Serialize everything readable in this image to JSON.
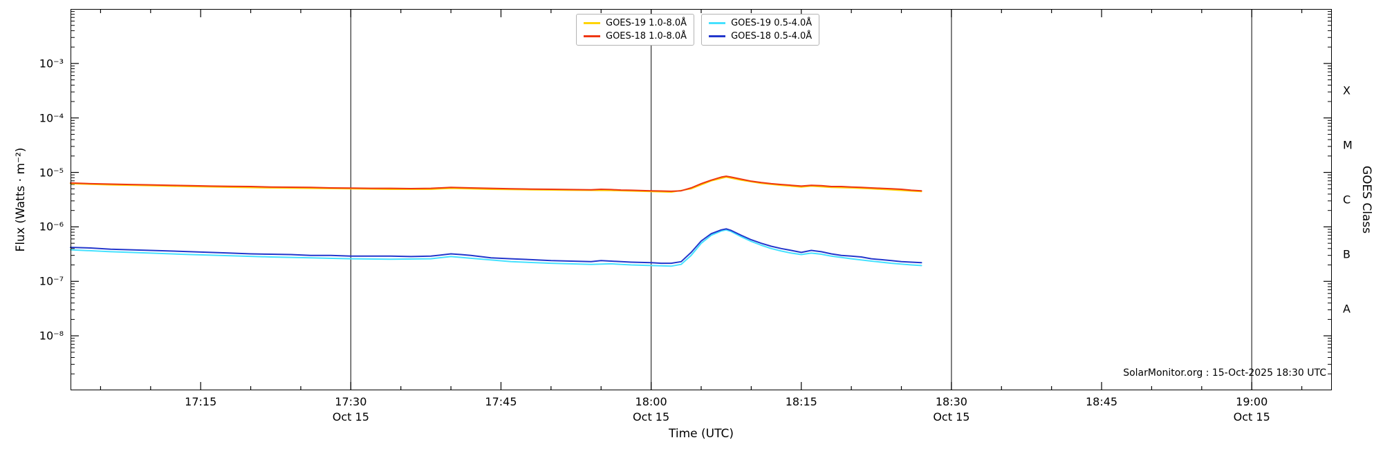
{
  "chart_data": {
    "type": "line",
    "title": "",
    "xlabel": "Time (UTC)",
    "ylabel": "Flux (Watts · m⁻²)",
    "ylabel_right": "GOES Class",
    "watermark": "SolarMonitor.org : 15-Oct-2025 18:30 UTC",
    "x_ref": "17:00 UTC, minutes offset",
    "x_range_minutes": [
      2,
      128
    ],
    "y_log_range": [
      -9,
      -2
    ],
    "grid": "vertical lines at half-hour marks only",
    "legend_position": "top center, two boxes",
    "y_ticks": [
      {
        "exp": -3,
        "label": "10⁻³"
      },
      {
        "exp": -4,
        "label": "10⁻⁴"
      },
      {
        "exp": -5,
        "label": "10⁻⁵"
      },
      {
        "exp": -6,
        "label": "10⁻⁶"
      },
      {
        "exp": -7,
        "label": "10⁻⁷"
      },
      {
        "exp": -8,
        "label": "10⁻⁸"
      }
    ],
    "x_ticks": [
      {
        "minute": 15,
        "label": "17:15",
        "sub": ""
      },
      {
        "minute": 30,
        "label": "17:30",
        "sub": "Oct 15"
      },
      {
        "minute": 45,
        "label": "17:45",
        "sub": ""
      },
      {
        "minute": 60,
        "label": "18:00",
        "sub": "Oct 15"
      },
      {
        "minute": 75,
        "label": "18:15",
        "sub": ""
      },
      {
        "minute": 90,
        "label": "18:30",
        "sub": "Oct 15"
      },
      {
        "minute": 105,
        "label": "18:45",
        "sub": ""
      },
      {
        "minute": 120,
        "label": "19:00",
        "sub": "Oct 15"
      }
    ],
    "gridline_minutes": [
      30,
      60,
      90,
      120
    ],
    "minor_tick_step_minutes": 5,
    "goes_classes": [
      {
        "label": "X",
        "log": -3.5
      },
      {
        "label": "M",
        "log": -4.5
      },
      {
        "label": "C",
        "log": -5.5
      },
      {
        "label": "B",
        "log": -6.5
      },
      {
        "label": "A",
        "log": -7.5
      }
    ],
    "series": [
      {
        "name": "GOES-19 1.0-8.0Å",
        "color": "#ffd400",
        "points": [
          [
            2,
            6.2e-06
          ],
          [
            6,
            5.9e-06
          ],
          [
            10,
            5.7e-06
          ],
          [
            14,
            5.5e-06
          ],
          [
            18,
            5.35e-06
          ],
          [
            22,
            5.2e-06
          ],
          [
            26,
            5.1e-06
          ],
          [
            30,
            5e-06
          ],
          [
            34,
            4.9e-06
          ],
          [
            38,
            4.9e-06
          ],
          [
            40,
            5.1e-06
          ],
          [
            44,
            4.9e-06
          ],
          [
            48,
            4.8e-06
          ],
          [
            52,
            4.7e-06
          ],
          [
            56,
            4.65e-06
          ],
          [
            60,
            4.45e-06
          ],
          [
            62,
            4.35e-06
          ],
          [
            64,
            5e-06
          ],
          [
            66,
            7e-06
          ],
          [
            67.5,
            8.2e-06
          ],
          [
            69,
            7.2e-06
          ],
          [
            71,
            6.3e-06
          ],
          [
            73,
            5.8e-06
          ],
          [
            75,
            5.4e-06
          ],
          [
            76,
            5.6e-06
          ],
          [
            78,
            5.3e-06
          ],
          [
            80,
            5.2e-06
          ],
          [
            82,
            5e-06
          ],
          [
            84,
            4.8e-06
          ],
          [
            86,
            4.55e-06
          ],
          [
            87,
            4.45e-06
          ]
        ]
      },
      {
        "name": "GOES-18 1.0-8.0Å",
        "color": "#ee3611",
        "points": [
          [
            2,
            6.4e-06
          ],
          [
            4,
            6.2e-06
          ],
          [
            6,
            6.1e-06
          ],
          [
            8,
            6e-06
          ],
          [
            10,
            5.9e-06
          ],
          [
            12,
            5.8e-06
          ],
          [
            14,
            5.7e-06
          ],
          [
            16,
            5.6e-06
          ],
          [
            18,
            5.55e-06
          ],
          [
            20,
            5.5e-06
          ],
          [
            22,
            5.4e-06
          ],
          [
            24,
            5.35e-06
          ],
          [
            26,
            5.3e-06
          ],
          [
            28,
            5.2e-06
          ],
          [
            30,
            5.15e-06
          ],
          [
            32,
            5.1e-06
          ],
          [
            34,
            5.1e-06
          ],
          [
            36,
            5.05e-06
          ],
          [
            38,
            5.1e-06
          ],
          [
            40,
            5.3e-06
          ],
          [
            41,
            5.25e-06
          ],
          [
            42,
            5.2e-06
          ],
          [
            44,
            5.1e-06
          ],
          [
            46,
            5e-06
          ],
          [
            48,
            4.95e-06
          ],
          [
            50,
            4.9e-06
          ],
          [
            52,
            4.85e-06
          ],
          [
            54,
            4.8e-06
          ],
          [
            55,
            4.9e-06
          ],
          [
            56,
            4.85e-06
          ],
          [
            57,
            4.75e-06
          ],
          [
            58,
            4.7e-06
          ],
          [
            60,
            4.6e-06
          ],
          [
            61,
            4.55e-06
          ],
          [
            62,
            4.5e-06
          ],
          [
            63,
            4.6e-06
          ],
          [
            64,
            5.2e-06
          ],
          [
            65,
            6.2e-06
          ],
          [
            66,
            7.2e-06
          ],
          [
            67,
            8.2e-06
          ],
          [
            67.5,
            8.5e-06
          ],
          [
            68,
            8.2e-06
          ],
          [
            69,
            7.5e-06
          ],
          [
            70,
            6.9e-06
          ],
          [
            71,
            6.5e-06
          ],
          [
            72,
            6.2e-06
          ],
          [
            73,
            6e-06
          ],
          [
            74,
            5.8e-06
          ],
          [
            75,
            5.6e-06
          ],
          [
            76,
            5.8e-06
          ],
          [
            77,
            5.7e-06
          ],
          [
            78,
            5.5e-06
          ],
          [
            79,
            5.5e-06
          ],
          [
            80,
            5.4e-06
          ],
          [
            81,
            5.3e-06
          ],
          [
            82,
            5.2e-06
          ],
          [
            83,
            5.1e-06
          ],
          [
            84,
            5e-06
          ],
          [
            85,
            4.9e-06
          ],
          [
            86,
            4.7e-06
          ],
          [
            87,
            4.6e-06
          ]
        ]
      },
      {
        "name": "GOES-19 0.5-4.0Å",
        "color": "#45e1ff",
        "points": [
          [
            2,
            3.8e-07
          ],
          [
            6,
            3.5e-07
          ],
          [
            10,
            3.3e-07
          ],
          [
            14,
            3.1e-07
          ],
          [
            18,
            2.95e-07
          ],
          [
            22,
            2.8e-07
          ],
          [
            26,
            2.7e-07
          ],
          [
            30,
            2.6e-07
          ],
          [
            34,
            2.55e-07
          ],
          [
            38,
            2.6e-07
          ],
          [
            40,
            2.85e-07
          ],
          [
            42,
            2.65e-07
          ],
          [
            46,
            2.3e-07
          ],
          [
            50,
            2.15e-07
          ],
          [
            54,
            2.05e-07
          ],
          [
            56,
            2.1e-07
          ],
          [
            58,
            2e-07
          ],
          [
            60,
            1.95e-07
          ],
          [
            62,
            1.9e-07
          ],
          [
            63,
            2.05e-07
          ],
          [
            64,
            3e-07
          ],
          [
            65,
            5e-07
          ],
          [
            66,
            7e-07
          ],
          [
            67,
            8.4e-07
          ],
          [
            67.5,
            8.8e-07
          ],
          [
            68,
            8.2e-07
          ],
          [
            69,
            6.6e-07
          ],
          [
            70,
            5.4e-07
          ],
          [
            71,
            4.6e-07
          ],
          [
            72,
            4e-07
          ],
          [
            73,
            3.6e-07
          ],
          [
            74,
            3.3e-07
          ],
          [
            75,
            3.1e-07
          ],
          [
            76,
            3.3e-07
          ],
          [
            77,
            3.15e-07
          ],
          [
            78,
            2.9e-07
          ],
          [
            80,
            2.6e-07
          ],
          [
            82,
            2.35e-07
          ],
          [
            84,
            2.15e-07
          ],
          [
            86,
            2e-07
          ],
          [
            87,
            1.95e-07
          ]
        ]
      },
      {
        "name": "GOES-18 0.5-4.0Å",
        "color": "#2236cc",
        "points": [
          [
            2,
            4.2e-07
          ],
          [
            4,
            4.1e-07
          ],
          [
            6,
            3.9e-07
          ],
          [
            8,
            3.8e-07
          ],
          [
            10,
            3.7e-07
          ],
          [
            12,
            3.6e-07
          ],
          [
            14,
            3.5e-07
          ],
          [
            16,
            3.4e-07
          ],
          [
            18,
            3.3e-07
          ],
          [
            20,
            3.2e-07
          ],
          [
            22,
            3.15e-07
          ],
          [
            24,
            3.1e-07
          ],
          [
            26,
            3e-07
          ],
          [
            28,
            3e-07
          ],
          [
            30,
            2.9e-07
          ],
          [
            32,
            2.9e-07
          ],
          [
            34,
            2.9e-07
          ],
          [
            36,
            2.85e-07
          ],
          [
            38,
            2.9e-07
          ],
          [
            40,
            3.2e-07
          ],
          [
            41,
            3.1e-07
          ],
          [
            42,
            3e-07
          ],
          [
            44,
            2.7e-07
          ],
          [
            46,
            2.6e-07
          ],
          [
            48,
            2.5e-07
          ],
          [
            50,
            2.4e-07
          ],
          [
            52,
            2.35e-07
          ],
          [
            54,
            2.3e-07
          ],
          [
            55,
            2.4e-07
          ],
          [
            56,
            2.35e-07
          ],
          [
            57,
            2.3e-07
          ],
          [
            58,
            2.25e-07
          ],
          [
            60,
            2.2e-07
          ],
          [
            61,
            2.15e-07
          ],
          [
            62,
            2.15e-07
          ],
          [
            63,
            2.3e-07
          ],
          [
            64,
            3.4e-07
          ],
          [
            65,
            5.5e-07
          ],
          [
            66,
            7.5e-07
          ],
          [
            67,
            8.8e-07
          ],
          [
            67.5,
            9.2e-07
          ],
          [
            68,
            8.6e-07
          ],
          [
            69,
            7e-07
          ],
          [
            70,
            5.8e-07
          ],
          [
            71,
            5e-07
          ],
          [
            72,
            4.4e-07
          ],
          [
            73,
            4e-07
          ],
          [
            74,
            3.7e-07
          ],
          [
            75,
            3.4e-07
          ],
          [
            76,
            3.7e-07
          ],
          [
            77,
            3.5e-07
          ],
          [
            78,
            3.2e-07
          ],
          [
            79,
            3e-07
          ],
          [
            80,
            2.9e-07
          ],
          [
            81,
            2.8e-07
          ],
          [
            82,
            2.6e-07
          ],
          [
            83,
            2.5e-07
          ],
          [
            84,
            2.4e-07
          ],
          [
            85,
            2.3e-07
          ],
          [
            86,
            2.25e-07
          ],
          [
            87,
            2.2e-07
          ]
        ]
      }
    ]
  },
  "legend": {
    "columns": [
      {
        "items": [
          {
            "label": "GOES-19 1.0-8.0Å",
            "color": "#ffd400"
          },
          {
            "label": "GOES-18 1.0-8.0Å",
            "color": "#ee3611"
          }
        ]
      },
      {
        "items": [
          {
            "label": "GOES-19 0.5-4.0Å",
            "color": "#45e1ff"
          },
          {
            "label": "GOES-18 0.5-4.0Å",
            "color": "#2236cc"
          }
        ]
      }
    ]
  },
  "labels": {
    "xlabel": "Time (UTC)",
    "ylabel": "Flux (Watts · m⁻²)",
    "right_label": "GOES Class",
    "watermark": "SolarMonitor.org : 15-Oct-2025 18:30 UTC"
  }
}
